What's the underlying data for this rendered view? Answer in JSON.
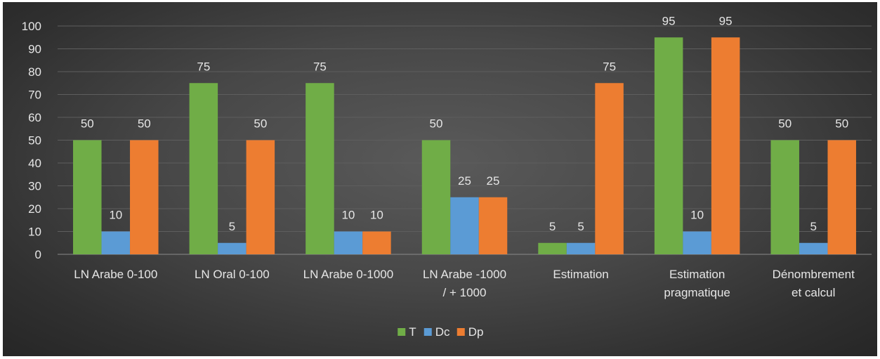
{
  "chart_data": {
    "type": "bar",
    "categories": [
      "LN Arabe 0-100",
      "LN Oral 0-100",
      "LN Arabe 0-1000",
      "LN Arabe -1000 / + 1000",
      "Estimation",
      "Estimation pragmatique",
      "Dénombrement et calcul"
    ],
    "category_lines": [
      [
        "LN Arabe 0-100"
      ],
      [
        "LN Oral 0-100"
      ],
      [
        "LN Arabe 0-1000"
      ],
      [
        "LN Arabe -1000",
        "/ + 1000"
      ],
      [
        "Estimation"
      ],
      [
        "Estimation",
        "pragmatique"
      ],
      [
        "Dénombrement",
        "et calcul"
      ]
    ],
    "series": [
      {
        "name": "T",
        "color": "#70ad47",
        "values": [
          50,
          75,
          75,
          50,
          5,
          95,
          50
        ]
      },
      {
        "name": "Dc",
        "color": "#5b9bd5",
        "values": [
          10,
          5,
          10,
          25,
          5,
          10,
          5
        ]
      },
      {
        "name": "Dp",
        "color": "#ed7d31",
        "values": [
          50,
          50,
          10,
          25,
          75,
          95,
          50
        ]
      }
    ],
    "ylim": [
      0,
      100
    ],
    "yticks": [
      0,
      10,
      20,
      30,
      40,
      50,
      60,
      70,
      80,
      90,
      100
    ],
    "grid": true,
    "legend": "bottom",
    "title": "",
    "xlabel": "",
    "ylabel": ""
  }
}
